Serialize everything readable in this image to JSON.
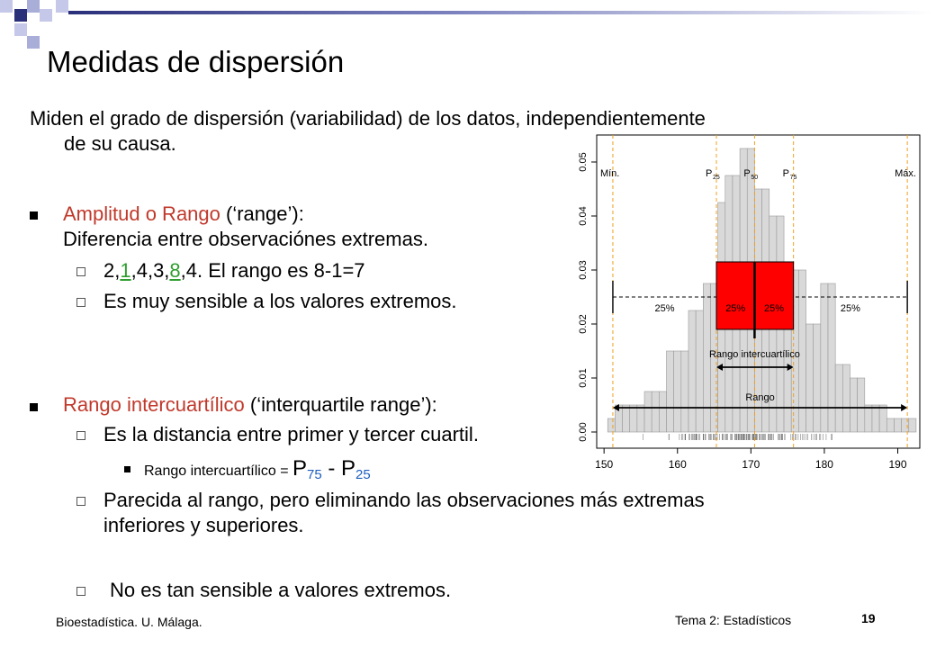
{
  "slide": {
    "title": "Medidas de dispersión",
    "intro_line1": "Miden el grado de dispersión (variabilidad) de los datos, independientemente",
    "intro_line2": "de su causa.",
    "range": {
      "heading": "Amplitud o Rango",
      "heading_rest": " (‘range’):",
      "definition": "Diferencia entre observaciónes extremas.",
      "example_pre": "2,",
      "example_min": "1",
      "example_mid": ",4,3,",
      "example_max": "8",
      "example_post": ",4. El rango es 8-1=7",
      "sensitivity": "Es muy sensible a los valores extremos."
    },
    "iqr": {
      "heading": "Rango intercuartílico",
      "heading_rest": " (‘interquartile range’):",
      "definition": "Es la distancia entre primer y tercer cuartil.",
      "formula_label": "Rango intercuartílico = ",
      "p": "P",
      "p75_sub": "75",
      "minus": " - ",
      "p25_sub": "25",
      "similar_line1": "Parecida al rango, pero eliminando las observaciones más extremas",
      "similar_line2": "inferiores y superiores.",
      "not_sensitive": "No es tan sensible a valores extremos."
    },
    "footer": {
      "left": "Bioestadística. U. Málaga.",
      "topic": "Tema 2: Estadísticos",
      "page": "19"
    }
  },
  "chart_data": {
    "type": "bar",
    "x_bins": [
      151,
      152,
      153,
      154,
      155,
      156,
      157,
      158,
      159,
      160,
      161,
      162,
      163,
      164,
      165,
      166,
      167,
      168,
      169,
      170,
      171,
      172,
      173,
      174,
      175,
      176,
      177,
      178,
      179,
      180,
      181,
      182,
      183,
      184,
      185,
      186,
      187,
      188,
      189,
      190,
      191,
      192
    ],
    "values": [
      0.0025,
      0.005,
      0.005,
      0.005,
      0.005,
      0.0075,
      0.0075,
      0.0075,
      0.015,
      0.015,
      0.015,
      0.0225,
      0.0225,
      0.0275,
      0.0275,
      0.0425,
      0.0475,
      0.0475,
      0.0525,
      0.0525,
      0.045,
      0.045,
      0.04,
      0.04,
      0.03,
      0.03,
      0.03,
      0.02,
      0.02,
      0.0275,
      0.0275,
      0.0125,
      0.0125,
      0.01,
      0.01,
      0.005,
      0.005,
      0.005,
      0.0025,
      0.0025,
      0.0025,
      0.0025
    ],
    "x_ticks": [
      "150",
      "160",
      "170",
      "180",
      "190"
    ],
    "y_ticks": [
      "0.00",
      "0.01",
      "0.02",
      "0.03",
      "0.04",
      "0.05"
    ],
    "xlim": [
      149,
      193
    ],
    "ylim": [
      -0.003,
      0.055
    ],
    "boxplot": {
      "min": 151.2,
      "p25": 165.3,
      "p50": 170.5,
      "p75": 175.8,
      "max": 191.3,
      "y_low": 0.019,
      "y_high": 0.0315,
      "y_line": 0.025
    },
    "percentile_labels": {
      "min": "Mín.",
      "p25": "P",
      "p25_sub": "25",
      "p50": "P",
      "p50_sub": "50",
      "p75": "P",
      "p75_sub": "75",
      "max": "Máx."
    },
    "quarter_labels": [
      "25%",
      "25%",
      "25%",
      "25%"
    ],
    "iqr_label": "Rango intercuartílico",
    "range_label": "Rango",
    "colors": {
      "bars": "#d9d9d9",
      "box": "#ff0000",
      "guides": "#f0a020"
    }
  }
}
